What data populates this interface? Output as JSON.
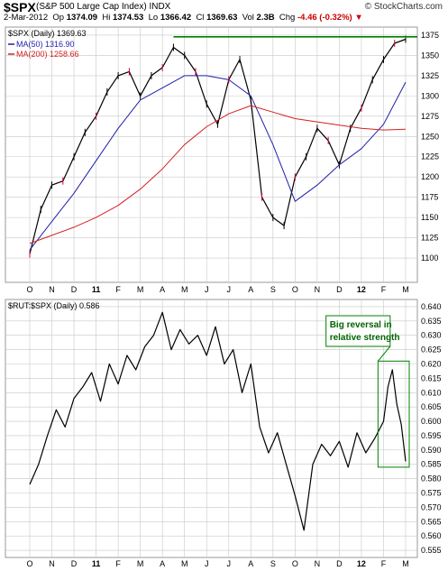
{
  "header": {
    "symbol": "$SPX",
    "description": "(S&P 500 Large Cap Index)",
    "exchange": "INDX",
    "logo": "© StockCharts.com",
    "date": "2-Mar-2012",
    "open_label": "Op",
    "open": "1374.09",
    "high_label": "Hi",
    "high": "1374.53",
    "low_label": "Lo",
    "low": "1366.42",
    "close_label": "Cl",
    "close": "1369.63",
    "vol_label": "Vol",
    "vol": "2.3B",
    "chg_label": "Chg",
    "chg": "-4.46 (-0.32%)"
  },
  "colors": {
    "price": "#000000",
    "price_down": "#cc0033",
    "ma50": "#1f1fa8",
    "ma200": "#d42020",
    "resistance": "#008000",
    "grid": "#c8c8c8",
    "annotation": "#008000"
  },
  "chart_data": [
    {
      "type": "line",
      "title": "$SPX (Daily) 1369.63",
      "ylim": [
        1070,
        1385
      ],
      "yticks": [
        1100,
        1125,
        1150,
        1175,
        1200,
        1225,
        1250,
        1275,
        1300,
        1325,
        1350,
        1375
      ],
      "x_months": [
        "O",
        "N",
        "D",
        "11",
        "F",
        "M",
        "A",
        "M",
        "J",
        "J",
        "A",
        "S",
        "O",
        "N",
        "D",
        "12",
        "F",
        "M"
      ],
      "grid": true,
      "legend": [
        "MA(50) 1316.90",
        "MA(200) 1258.66"
      ],
      "series": [
        {
          "name": "$SPX",
          "x": [
            0,
            0.5,
            1,
            1.5,
            2,
            2.5,
            3,
            3.5,
            4,
            4.5,
            5,
            5.5,
            6,
            6.5,
            7,
            7.5,
            8,
            8.5,
            9,
            9.5,
            10,
            10.5,
            11,
            11.5,
            12,
            12.5,
            13,
            13.5,
            14,
            14.5,
            15,
            15.5,
            16,
            16.5,
            17
          ],
          "values": [
            1105,
            1160,
            1190,
            1195,
            1225,
            1255,
            1275,
            1305,
            1325,
            1330,
            1300,
            1325,
            1335,
            1360,
            1350,
            1330,
            1290,
            1265,
            1320,
            1345,
            1295,
            1175,
            1150,
            1140,
            1200,
            1225,
            1260,
            1245,
            1215,
            1260,
            1285,
            1320,
            1345,
            1365,
            1370
          ]
        },
        {
          "name": "MA(50) 1316.90",
          "x": [
            0,
            1,
            2,
            3,
            4,
            5,
            6,
            7,
            8,
            9,
            10,
            11,
            12,
            13,
            14,
            15,
            16,
            17
          ],
          "values": [
            1110,
            1145,
            1180,
            1220,
            1260,
            1295,
            1310,
            1325,
            1325,
            1320,
            1300,
            1240,
            1170,
            1190,
            1215,
            1235,
            1265,
            1317
          ]
        },
        {
          "name": "MA(200) 1258.66",
          "x": [
            0,
            1,
            2,
            3,
            4,
            5,
            6,
            7,
            8,
            9,
            10,
            11,
            12,
            13,
            14,
            15,
            16,
            17
          ],
          "values": [
            1118,
            1128,
            1138,
            1150,
            1165,
            1185,
            1210,
            1240,
            1262,
            1278,
            1288,
            1280,
            1272,
            1268,
            1264,
            1260,
            1258,
            1259
          ]
        }
      ],
      "hline": 1373
    },
    {
      "type": "line",
      "title": "$RUT:$SPX (Daily) 0.586",
      "ylim": [
        0.5525,
        0.6425
      ],
      "yticks": [
        0.555,
        0.56,
        0.565,
        0.57,
        0.575,
        0.58,
        0.585,
        0.59,
        0.595,
        0.6,
        0.605,
        0.61,
        0.615,
        0.62,
        0.625,
        0.63,
        0.635,
        0.64
      ],
      "x_months": [
        "O",
        "N",
        "D",
        "11",
        "F",
        "M",
        "A",
        "M",
        "J",
        "J",
        "A",
        "S",
        "O",
        "N",
        "D",
        "12",
        "F",
        "M"
      ],
      "grid": true,
      "series": [
        {
          "name": "$RUT:$SPX",
          "x": [
            0,
            0.4,
            0.8,
            1.2,
            1.6,
            2,
            2.4,
            2.8,
            3.2,
            3.6,
            4,
            4.4,
            4.8,
            5.2,
            5.6,
            6,
            6.4,
            6.8,
            7.2,
            7.6,
            8,
            8.4,
            8.8,
            9.2,
            9.6,
            10,
            10.4,
            10.8,
            11.2,
            11.6,
            12,
            12.4,
            12.8,
            13.2,
            13.6,
            14,
            14.4,
            14.8,
            15.2,
            15.6,
            16,
            16.2,
            16.4,
            16.6,
            16.8,
            17
          ],
          "values": [
            0.578,
            0.585,
            0.595,
            0.604,
            0.598,
            0.608,
            0.612,
            0.617,
            0.607,
            0.62,
            0.613,
            0.623,
            0.618,
            0.626,
            0.63,
            0.638,
            0.625,
            0.632,
            0.627,
            0.63,
            0.623,
            0.633,
            0.62,
            0.625,
            0.61,
            0.62,
            0.598,
            0.589,
            0.596,
            0.585,
            0.574,
            0.562,
            0.585,
            0.592,
            0.588,
            0.593,
            0.584,
            0.596,
            0.589,
            0.594,
            0.6,
            0.612,
            0.618,
            0.606,
            0.599,
            0.586
          ]
        }
      ],
      "annotation": "Big reversal in relative strength"
    }
  ]
}
